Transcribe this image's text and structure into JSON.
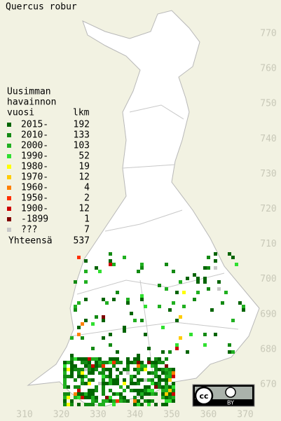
{
  "title": "Quercus robur",
  "legend": {
    "header": [
      "Uusimman",
      "havainnon",
      "vuosi"
    ],
    "count_header": "lkm",
    "rows": [
      {
        "label": "2015-",
        "count": 192,
        "color": "#006400"
      },
      {
        "label": "2010-",
        "count": 133,
        "color": "#138a13"
      },
      {
        "label": "2000-",
        "count": 103,
        "color": "#20b020"
      },
      {
        "label": "1990-",
        "count": 52,
        "color": "#30e030"
      },
      {
        "label": "1980-",
        "count": 19,
        "color": "#ffff00"
      },
      {
        "label": "1970-",
        "count": 12,
        "color": "#ffcc00"
      },
      {
        "label": "1960-",
        "count": 4,
        "color": "#ff8000"
      },
      {
        "label": "1950-",
        "count": 2,
        "color": "#ff3000"
      },
      {
        "label": "1900-",
        "count": 12,
        "color": "#cc0000"
      },
      {
        "label": "-1899",
        "count": 1,
        "color": "#800000"
      },
      {
        "label": "???",
        "count": 7,
        "color": "#c8c8c8"
      }
    ],
    "total": {
      "label": "Yhteensä",
      "count": 537
    }
  },
  "x_labels": [
    "310",
    "320",
    "330",
    "340",
    "350",
    "360",
    "370"
  ],
  "y_labels": [
    "770",
    "760",
    "750",
    "740",
    "730",
    "720",
    "710",
    "700",
    "690",
    "680",
    "670"
  ],
  "license_label": "BY"
}
